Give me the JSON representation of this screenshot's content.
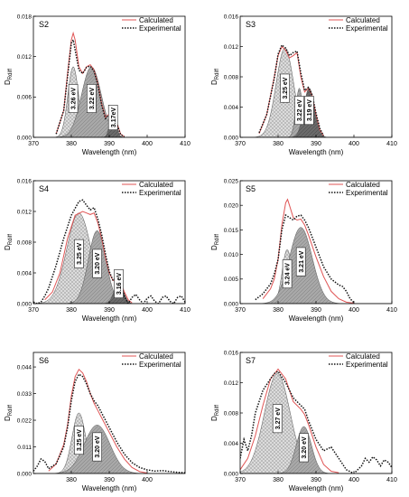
{
  "legend": {
    "calculated": "Calculated",
    "experimental": "Experimental"
  },
  "colors": {
    "calculated": "#e05555",
    "experimental": "#111111",
    "light_fill": "#d8d8d8",
    "mid_fill": "#a8a8a8",
    "dark_fill": "#6a6a6a"
  },
  "chart_data": [
    {
      "panel": "S2",
      "type": "line",
      "xlabel": "Wavelength (nm)",
      "ylabel": "D_Rdiff",
      "xlim": [
        370,
        410
      ],
      "xticks": [
        370,
        380,
        390,
        400,
        410
      ],
      "ylim": [
        0,
        0.018
      ],
      "yticks": [
        0.0,
        0.006,
        0.012,
        0.018
      ],
      "ytick_labels": [
        "0.000",
        "0.006",
        "0.012",
        "0.018"
      ],
      "components": [
        {
          "label": "3.26 eV",
          "center": 380.5,
          "sigma": 1.4,
          "amp": 0.0105,
          "fill": "light"
        },
        {
          "label": "3.22 eV",
          "center": 385.3,
          "sigma": 2.6,
          "amp": 0.0105,
          "fill": "mid"
        },
        {
          "label": "3.17eV",
          "center": 391.0,
          "sigma": 0.8,
          "amp": 0.004,
          "fill": "dark"
        }
      ],
      "calculated": {
        "x": [
          376,
          378,
          379,
          380,
          380.5,
          381,
          382,
          383,
          384,
          385,
          386,
          387,
          388,
          389,
          390,
          391,
          392,
          393,
          394
        ],
        "y": [
          0.0005,
          0.004,
          0.0095,
          0.0145,
          0.0155,
          0.0145,
          0.0105,
          0.0095,
          0.0105,
          0.0108,
          0.01,
          0.008,
          0.005,
          0.003,
          0.0035,
          0.0042,
          0.0022,
          0.0005,
          0.0001
        ]
      },
      "experimental": {
        "x": [
          376,
          378,
          379,
          380,
          380.5,
          381,
          382,
          383,
          384,
          385,
          386,
          387,
          388,
          389,
          390,
          391,
          392,
          393,
          394
        ],
        "y": [
          0.0005,
          0.004,
          0.009,
          0.014,
          0.0145,
          0.013,
          0.01,
          0.0095,
          0.0104,
          0.0106,
          0.0098,
          0.0078,
          0.0048,
          0.0028,
          0.0034,
          0.004,
          0.002,
          0.0004,
          0.0001
        ]
      }
    },
    {
      "panel": "S3",
      "type": "line",
      "xlabel": "Wavelength (nm)",
      "ylabel": "D_Rdiff",
      "xlim": [
        370,
        410
      ],
      "xticks": [
        370,
        380,
        390,
        400,
        410
      ],
      "ylim": [
        0,
        0.016
      ],
      "yticks": [
        0.0,
        0.004,
        0.008,
        0.012,
        0.016
      ],
      "ytick_labels": [
        "0.000",
        "0.004",
        "0.008",
        "0.012",
        "0.016"
      ],
      "components": [
        {
          "label": "3.25 eV",
          "center": 381.8,
          "sigma": 2.3,
          "amp": 0.0118,
          "fill": "light"
        },
        {
          "label": "3.22 eV",
          "center": 385.6,
          "sigma": 0.9,
          "amp": 0.0065,
          "fill": "mid"
        },
        {
          "label": "3.19 eV",
          "center": 388.2,
          "sigma": 1.4,
          "amp": 0.0065,
          "fill": "dark"
        }
      ],
      "calculated": {
        "x": [
          375,
          377,
          379,
          380,
          381,
          382,
          383,
          384,
          385,
          386,
          387,
          388,
          389,
          390,
          391,
          392
        ],
        "y": [
          0.0005,
          0.003,
          0.008,
          0.0108,
          0.012,
          0.0115,
          0.0105,
          0.0108,
          0.0112,
          0.008,
          0.006,
          0.0065,
          0.0055,
          0.003,
          0.001,
          0.0002
        ]
      },
      "experimental": {
        "x": [
          375,
          377,
          379,
          380,
          381,
          382,
          383,
          384,
          385,
          386,
          387,
          388,
          389,
          390,
          391,
          392
        ],
        "y": [
          0.0006,
          0.003,
          0.0078,
          0.011,
          0.0122,
          0.0118,
          0.0108,
          0.0112,
          0.0114,
          0.0085,
          0.0062,
          0.0066,
          0.0056,
          0.0032,
          0.0012,
          0.0002
        ]
      }
    },
    {
      "panel": "S4",
      "type": "line",
      "xlabel": "Wavelength (nm)",
      "ylabel": "D_Rdiff",
      "xlim": [
        370,
        410
      ],
      "xticks": [
        370,
        380,
        390,
        400,
        410
      ],
      "ylim": [
        0,
        0.016
      ],
      "yticks": [
        0.0,
        0.004,
        0.008,
        0.012,
        0.016
      ],
      "ytick_labels": [
        "0.000",
        "0.004",
        "0.008",
        "0.012",
        "0.016"
      ],
      "components": [
        {
          "label": "3.25 eV",
          "center": 382.0,
          "sigma": 3.2,
          "amp": 0.0118,
          "fill": "light"
        },
        {
          "label": "3.20 eV",
          "center": 386.8,
          "sigma": 2.3,
          "amp": 0.0095,
          "fill": "mid"
        },
        {
          "label": "3.16 eV",
          "center": 392.5,
          "sigma": 1.2,
          "amp": 0.0028,
          "fill": "dark"
        }
      ],
      "calculated": {
        "x": [
          373,
          375,
          377,
          379,
          381,
          383,
          384,
          385,
          386,
          387,
          388,
          389,
          390,
          391,
          392,
          393,
          394,
          395,
          396
        ],
        "y": [
          0.0005,
          0.0015,
          0.004,
          0.0085,
          0.0115,
          0.012,
          0.0118,
          0.0116,
          0.0118,
          0.0105,
          0.0085,
          0.006,
          0.004,
          0.003,
          0.0032,
          0.0028,
          0.0015,
          0.0005,
          0.0001
        ]
      },
      "experimental": {
        "x": [
          370,
          371,
          372,
          373,
          374,
          376,
          378,
          380,
          382,
          383,
          384,
          385,
          386,
          387,
          388,
          389,
          390,
          391,
          392,
          393,
          394,
          395,
          396,
          397,
          398,
          399,
          400,
          401,
          402,
          403,
          404,
          405,
          406,
          407,
          408,
          409,
          410
        ],
        "y": [
          0.0002,
          0.0,
          0.0002,
          0.001,
          0.002,
          0.005,
          0.0085,
          0.0115,
          0.0133,
          0.0135,
          0.0128,
          0.0122,
          0.0125,
          0.011,
          0.009,
          0.0065,
          0.0042,
          0.003,
          0.0035,
          0.0028,
          0.001,
          0.0,
          0.0008,
          0.0012,
          0.0005,
          0.0,
          0.0007,
          0.001,
          0.0003,
          0.0,
          0.0008,
          0.001,
          0.0003,
          0.0,
          0.0008,
          0.001,
          0.0002
        ]
      }
    },
    {
      "panel": "S5",
      "type": "line",
      "xlabel": "Wavelength (nm)",
      "ylabel": "D_Rdiff",
      "xlim": [
        370,
        410
      ],
      "xticks": [
        370,
        380,
        390,
        400,
        410
      ],
      "ylim": [
        0,
        0.025
      ],
      "yticks": [
        0.0,
        0.005,
        0.01,
        0.015,
        0.02,
        0.025
      ],
      "ytick_labels": [
        "0.000",
        "0.005",
        "0.010",
        "0.015",
        "0.020",
        "0.025"
      ],
      "components": [
        {
          "label": "3.24 eV",
          "center": 382.4,
          "sigma": 1.3,
          "amp": 0.011,
          "fill": "light"
        },
        {
          "label": "3.21 eV",
          "center": 386.0,
          "sigma": 3.0,
          "amp": 0.0155,
          "fill": "mid"
        }
      ],
      "calculated": {
        "x": [
          376,
          378,
          379,
          380,
          381,
          382,
          382.5,
          383,
          384,
          385,
          386,
          387,
          388,
          390,
          392,
          394,
          396,
          398,
          400
        ],
        "y": [
          0.001,
          0.003,
          0.005,
          0.009,
          0.016,
          0.0205,
          0.0212,
          0.02,
          0.0175,
          0.017,
          0.0172,
          0.016,
          0.014,
          0.0095,
          0.0055,
          0.0025,
          0.001,
          0.0003,
          0.0001
        ]
      },
      "experimental": {
        "x": [
          374,
          376,
          378,
          379,
          380,
          381,
          382,
          383,
          384,
          385,
          386,
          387,
          388,
          390,
          392,
          394,
          396,
          397,
          398,
          399,
          400
        ],
        "y": [
          0.0008,
          0.002,
          0.004,
          0.006,
          0.009,
          0.015,
          0.018,
          0.0175,
          0.017,
          0.0178,
          0.018,
          0.017,
          0.0155,
          0.0115,
          0.0075,
          0.005,
          0.0038,
          0.0035,
          0.0025,
          0.001,
          0.0002
        ]
      }
    },
    {
      "panel": "S6",
      "type": "line",
      "xlabel": "Wavelength (nm)",
      "ylabel": "D_Rdiff",
      "xlim": [
        370,
        410
      ],
      "xticks": [
        380,
        390,
        400
      ],
      "xtick_labels": [
        "380",
        "390",
        "400"
      ],
      "ylim": [
        0,
        0.05
      ],
      "yticks": [
        0.0,
        0.011,
        0.022,
        0.033,
        0.044
      ],
      "ytick_labels": [
        "0.000",
        "0.011",
        "0.022",
        "0.033",
        "0.044"
      ],
      "components": [
        {
          "label": "3.25 eV",
          "center": 382.0,
          "sigma": 1.8,
          "amp": 0.025,
          "fill": "light"
        },
        {
          "label": "3.20 eV",
          "center": 386.8,
          "sigma": 3.4,
          "amp": 0.02,
          "fill": "mid"
        }
      ],
      "calculated": {
        "x": [
          374,
          376,
          378,
          379,
          380,
          381,
          382,
          383,
          384,
          385,
          386,
          387,
          388,
          390,
          392,
          394,
          396,
          398,
          400
        ],
        "y": [
          0.001,
          0.004,
          0.012,
          0.02,
          0.032,
          0.04,
          0.043,
          0.0415,
          0.038,
          0.033,
          0.029,
          0.026,
          0.023,
          0.017,
          0.011,
          0.006,
          0.0025,
          0.0008,
          0.0002
        ]
      },
      "experimental": {
        "x": [
          370,
          371,
          372,
          373,
          374,
          376,
          378,
          379,
          380,
          381,
          382,
          383,
          384,
          385,
          386,
          387,
          388,
          390,
          392,
          394,
          396,
          398,
          400,
          402,
          404,
          406,
          408,
          410
        ],
        "y": [
          0.001,
          0.003,
          0.006,
          0.005,
          0.002,
          0.004,
          0.011,
          0.019,
          0.03,
          0.038,
          0.041,
          0.04,
          0.037,
          0.033,
          0.03,
          0.028,
          0.025,
          0.019,
          0.013,
          0.008,
          0.0045,
          0.0025,
          0.0015,
          0.001,
          0.0012,
          0.0008,
          0.0005,
          0.0003
        ]
      }
    },
    {
      "panel": "S7",
      "type": "line",
      "xlabel": "Wavelength (nm)",
      "ylabel": "D_Rdiff",
      "xlim": [
        370,
        410
      ],
      "xticks": [
        370,
        380,
        390,
        400,
        410
      ],
      "ylim": [
        0,
        0.016
      ],
      "yticks": [
        0.0,
        0.004,
        0.008,
        0.012,
        0.016
      ],
      "ytick_labels": [
        "0.000",
        "0.004",
        "0.008",
        "0.012",
        "0.016"
      ],
      "components": [
        {
          "label": "3.27 eV",
          "center": 379.8,
          "sigma": 3.4,
          "amp": 0.0132,
          "fill": "light"
        },
        {
          "label": "3.20 eV",
          "center": 386.8,
          "sigma": 2.0,
          "amp": 0.0062,
          "fill": "mid"
        }
      ],
      "calculated": {
        "x": [
          370,
          372,
          374,
          376,
          378,
          380,
          382,
          384,
          386,
          387,
          388,
          390,
          392,
          394,
          396
        ],
        "y": [
          0.0005,
          0.002,
          0.005,
          0.009,
          0.0125,
          0.0138,
          0.0125,
          0.0095,
          0.0085,
          0.0078,
          0.0065,
          0.0035,
          0.0012,
          0.0003,
          0.0001
        ]
      },
      "experimental": {
        "x": [
          370,
          371,
          372,
          373,
          374,
          375,
          376,
          378,
          379,
          380,
          382,
          384,
          386,
          387,
          388,
          390,
          392,
          394,
          396,
          398,
          400,
          402,
          403,
          404,
          405,
          406,
          407,
          408,
          409,
          410
        ],
        "y": [
          0.002,
          0.0045,
          0.003,
          0.005,
          0.008,
          0.0095,
          0.011,
          0.0125,
          0.0132,
          0.0135,
          0.012,
          0.01,
          0.009,
          0.0085,
          0.007,
          0.0045,
          0.003,
          0.0035,
          0.002,
          0.0005,
          0.0,
          0.001,
          0.002,
          0.0015,
          0.0022,
          0.0018,
          0.001,
          0.0018,
          0.0015,
          0.0008
        ]
      }
    }
  ]
}
